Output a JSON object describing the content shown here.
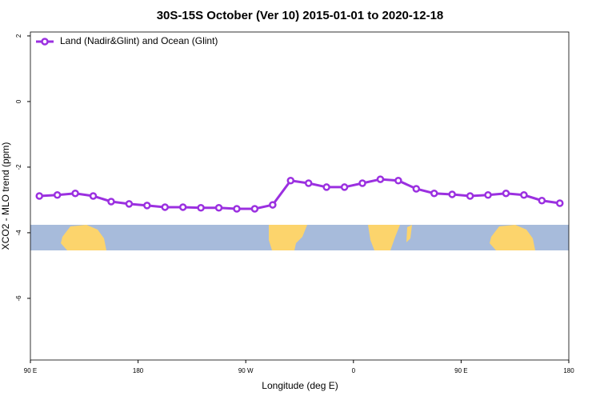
{
  "chart_data": {
    "type": "line",
    "title": "30S-15S October (Ver 10)   2015-01-01 to 2020-12-18",
    "x_label": "Longitude (deg E)",
    "y_label": "XCO2 - MLO trend (ppm)",
    "x": [
      97.5,
      112.5,
      127.5,
      142.5,
      157.5,
      172.5,
      187.5,
      202.5,
      217.5,
      232.5,
      247.5,
      262.5,
      277.5,
      292.5,
      307.5,
      322.5,
      337.5,
      352.5,
      367.5,
      382.5,
      397.5,
      412.5,
      427.5,
      442.5,
      457.5,
      472.5,
      487.5,
      502.5,
      517.5,
      532.5
    ],
    "series": [
      {
        "name": "Land (Nadir&Glint) and Ocean (Glint)",
        "color": "#9b30e0",
        "values": [
          -2.88,
          -2.85,
          -2.8,
          -2.88,
          -3.05,
          -3.12,
          -3.17,
          -3.22,
          -3.22,
          -3.24,
          -3.24,
          -3.27,
          -3.27,
          -3.15,
          -2.41,
          -2.49,
          -2.61,
          -2.61,
          -2.49,
          -2.37,
          -2.41,
          -2.66,
          -2.8,
          -2.83,
          -2.88,
          -2.85,
          -2.8,
          -2.85,
          -3.02,
          -3.1
        ]
      }
    ],
    "xlim": [
      90,
      540
    ],
    "xticks": [
      {
        "value": 90,
        "label": "90 E"
      },
      {
        "value": 180,
        "label": "180"
      },
      {
        "value": 270,
        "label": "90 W"
      },
      {
        "value": 360,
        "label": "0"
      },
      {
        "value": 450,
        "label": "90 E"
      },
      {
        "value": 540,
        "label": "180"
      }
    ],
    "ylim": [
      -7.88,
      2.12
    ],
    "yticks": [
      2,
      0,
      -2,
      -4,
      -6
    ],
    "legend": "top-left"
  }
}
